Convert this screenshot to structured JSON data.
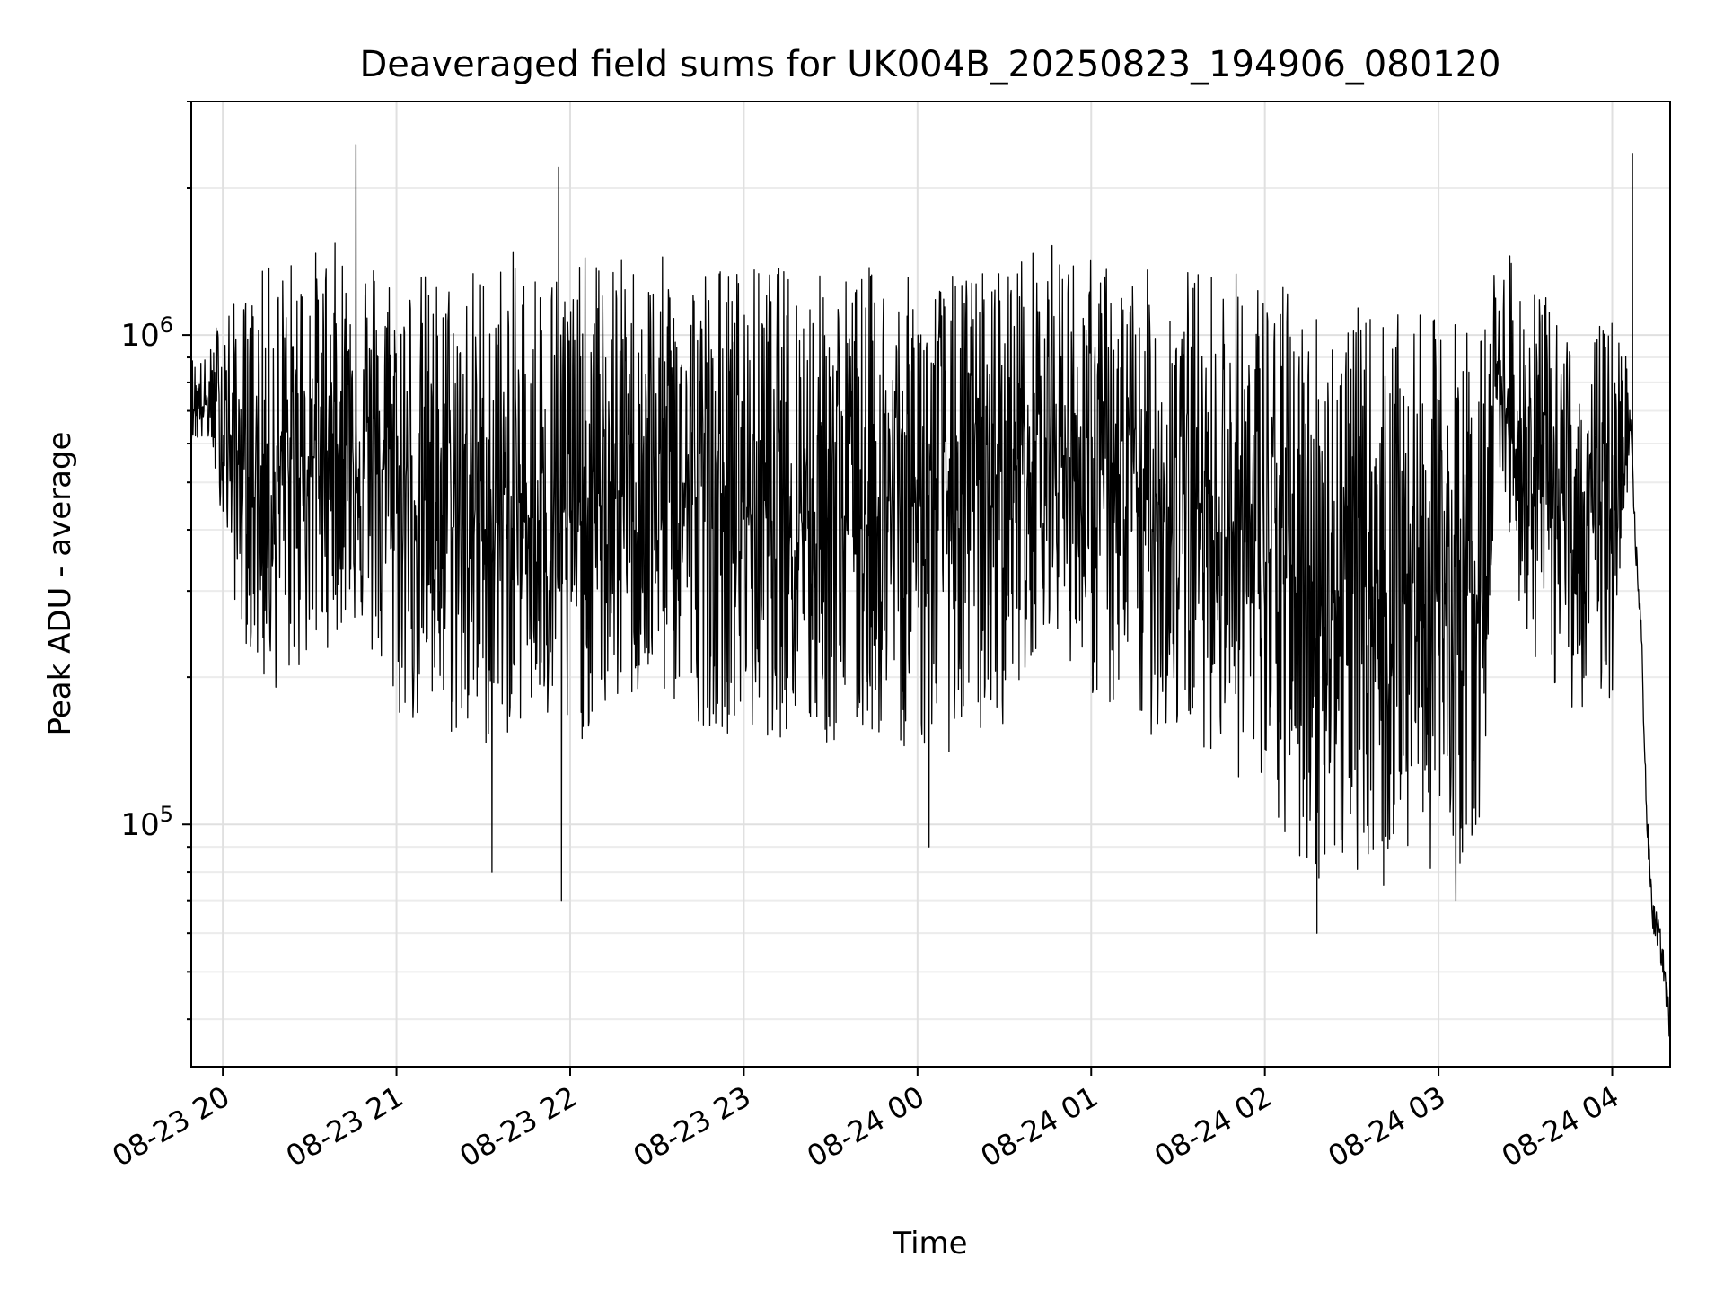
{
  "chart_data": {
    "type": "line",
    "title": "Deaveraged field sums for UK004B_20250823_194906_080120",
    "xlabel": "Time",
    "ylabel": "Peak ADU - average",
    "yscale": "log",
    "ylim": [
      32000,
      3000000
    ],
    "xlim": [
      "2025-08-23 19:49:06",
      "2025-08-24 04:20:00"
    ],
    "grid": true,
    "x_ticks": [
      "08-23 20",
      "08-23 21",
      "08-23 22",
      "08-23 23",
      "08-24 00",
      "08-24 01",
      "08-24 02",
      "08-24 03",
      "08-24 04"
    ],
    "y_ticks": [
      {
        "value": 100000,
        "base": "10",
        "exp": "5"
      },
      {
        "value": 1000000,
        "base": "10",
        "exp": "6"
      }
    ],
    "series": [
      {
        "color": "#000000",
        "x": [
          "2025-08-23 19:49",
          "2025-08-23 19:55",
          "2025-08-23 20:00",
          "2025-08-23 20:05",
          "2025-08-23 20:15",
          "2025-08-23 20:30",
          "2025-08-23 20:45",
          "2025-08-23 21:00",
          "2025-08-23 21:15",
          "2025-08-23 21:30",
          "2025-08-23 21:45",
          "2025-08-23 22:00",
          "2025-08-23 22:15",
          "2025-08-23 22:30",
          "2025-08-23 22:45",
          "2025-08-23 23:00",
          "2025-08-23 23:15",
          "2025-08-23 23:30",
          "2025-08-23 23:45",
          "2025-08-24 00:00",
          "2025-08-24 00:15",
          "2025-08-24 00:30",
          "2025-08-24 00:45",
          "2025-08-24 01:00",
          "2025-08-24 01:15",
          "2025-08-24 01:30",
          "2025-08-24 01:45",
          "2025-08-24 02:00",
          "2025-08-24 02:15",
          "2025-08-24 02:30",
          "2025-08-24 02:45",
          "2025-08-24 03:00",
          "2025-08-24 03:15",
          "2025-08-24 03:20",
          "2025-08-24 03:30",
          "2025-08-24 03:45",
          "2025-08-24 04:00",
          "2025-08-24 04:06",
          "2025-08-24 04:08",
          "2025-08-24 04:10",
          "2025-08-24 04:12",
          "2025-08-24 04:14",
          "2025-08-24 04:16",
          "2025-08-24 04:18",
          "2025-08-24 04:20"
        ],
        "mid": [
          720000,
          720000,
          650000,
          550000,
          500000,
          560000,
          620000,
          500000,
          430000,
          400000,
          430000,
          400000,
          470000,
          480000,
          470000,
          450000,
          470000,
          450000,
          430000,
          470000,
          480000,
          520000,
          620000,
          520000,
          460000,
          460000,
          430000,
          350000,
          300000,
          300000,
          310000,
          300000,
          310000,
          850000,
          500000,
          420000,
          420000,
          700000,
          380000,
          250000,
          100000,
          65000,
          60000,
          50000,
          38000
        ],
        "lo": [
          600000,
          600000,
          420000,
          260000,
          180000,
          210000,
          260000,
          160000,
          150000,
          140000,
          160000,
          140000,
          170000,
          180000,
          160000,
          150000,
          150000,
          140000,
          150000,
          140000,
          140000,
          160000,
          260000,
          180000,
          150000,
          150000,
          140000,
          100000,
          75000,
          80000,
          85000,
          80000,
          85000,
          600000,
          230000,
          170000,
          180000,
          520000,
          300000,
          180000,
          70000,
          56000,
          52000,
          44000,
          34000
        ],
        "hi": [
          920000,
          900000,
          1250000,
          1150000,
          1400000,
          1500000,
          1600000,
          1400000,
          1350000,
          1450000,
          1500000,
          1450000,
          1450000,
          1450000,
          1450000,
          1400000,
          1400000,
          1350000,
          1400000,
          1300000,
          1350000,
          1450000,
          1550000,
          1450000,
          1350000,
          1400000,
          1400000,
          1350000,
          1200000,
          1150000,
          1100000,
          1100000,
          1100000,
          1500000,
          1400000,
          1000000,
          1100000,
          1050000,
          900000,
          400000,
          130000,
          80000,
          75000,
          60000,
          45000
        ],
        "extremes": [
          {
            "x": "2025-08-23 20:46",
            "y": 2450000
          },
          {
            "x": "2025-08-23 21:33",
            "y": 80000
          },
          {
            "x": "2025-08-23 21:56",
            "y": 2200000
          },
          {
            "x": "2025-08-23 21:57",
            "y": 70000
          },
          {
            "x": "2025-08-24 00:04",
            "y": 90000
          },
          {
            "x": "2025-08-24 02:18",
            "y": 60000
          },
          {
            "x": "2025-08-24 02:41",
            "y": 75000
          },
          {
            "x": "2025-08-24 03:06",
            "y": 70000
          },
          {
            "x": "2025-08-24 04:07",
            "y": 2350000
          }
        ]
      }
    ]
  }
}
